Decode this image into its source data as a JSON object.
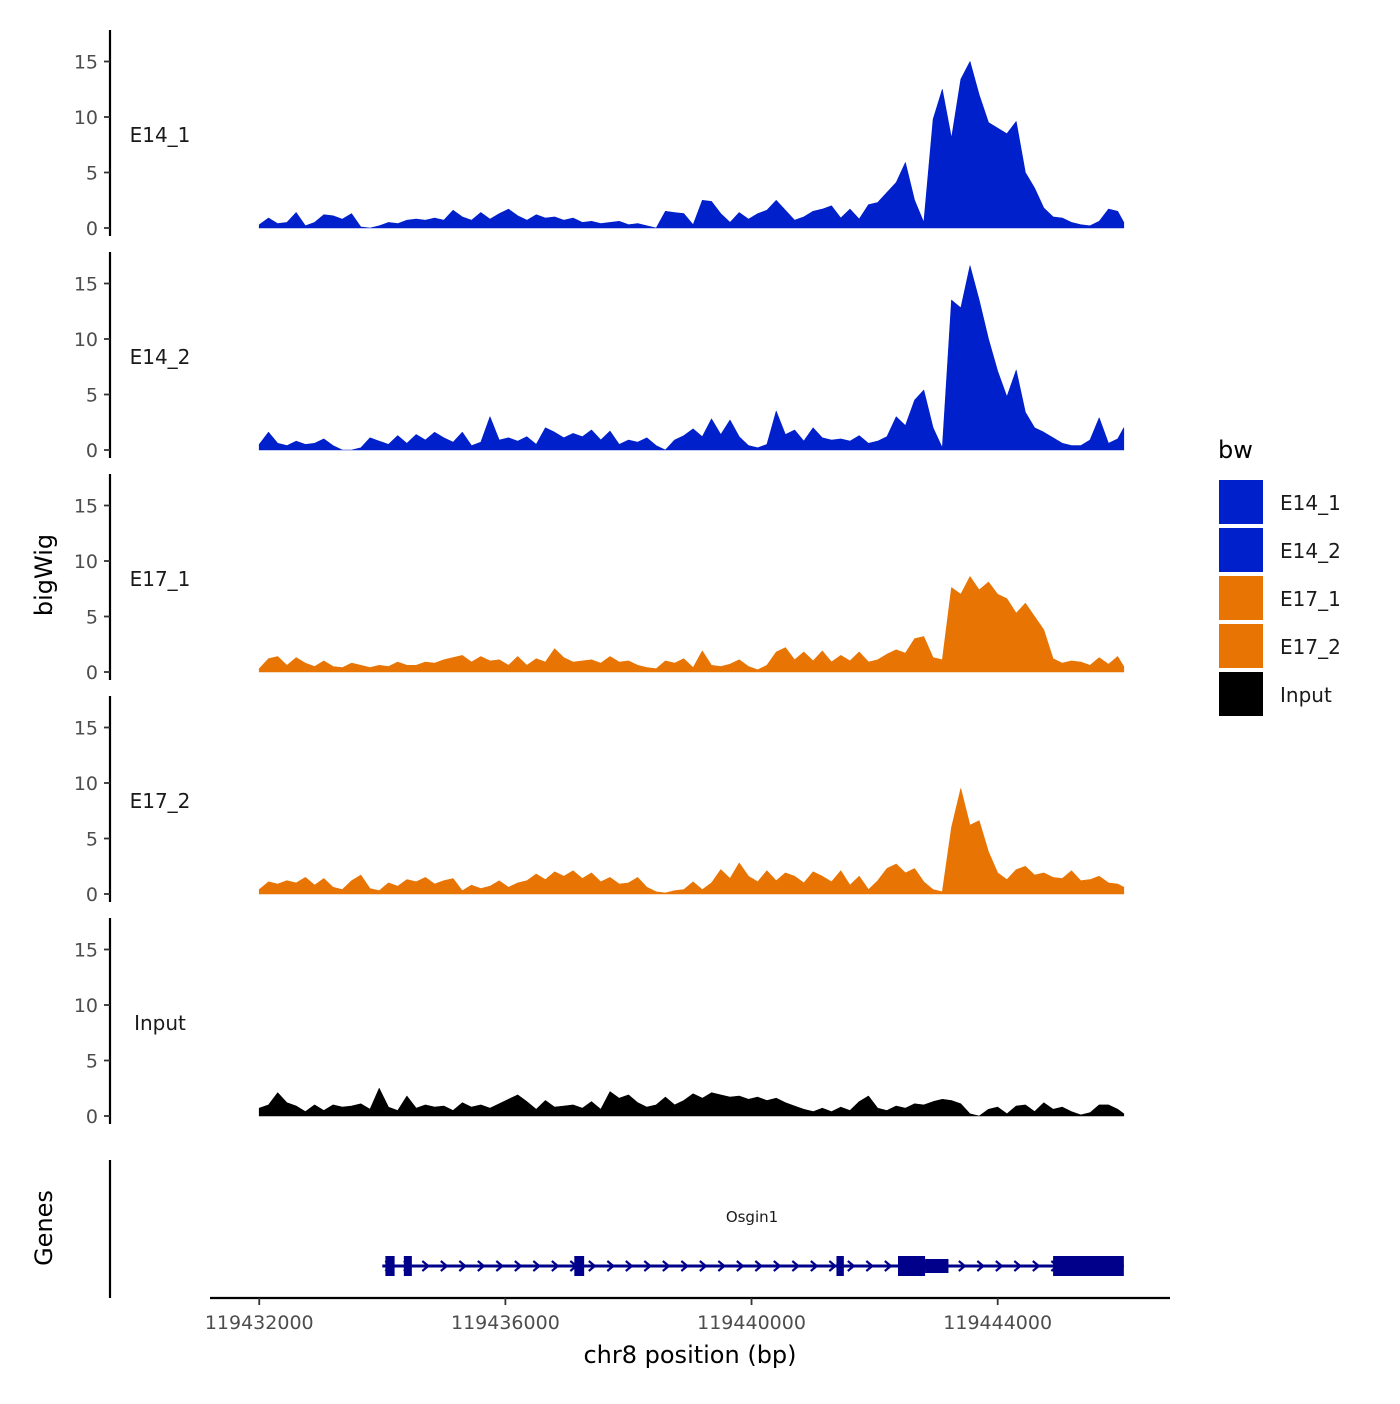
{
  "chart_data": {
    "type": "area",
    "xlabel": "chr8 position (bp)",
    "ylabel": "bigWig",
    "xlim": [
      119431200,
      119446800
    ],
    "x_ticks": [
      119432000,
      119436000,
      119440000,
      119444000
    ],
    "x_tick_labels": [
      "119432000",
      "119436000",
      "119440000",
      "119444000"
    ],
    "ylim": [
      0,
      17.5
    ],
    "y_ticks": [
      0,
      5,
      10,
      15
    ],
    "y_tick_labels": [
      "0",
      "5",
      "10",
      "15"
    ],
    "legend": {
      "title": "bw",
      "position": "right",
      "entries": [
        {
          "label": "E14_1",
          "color": "#0020CC"
        },
        {
          "label": "E14_2",
          "color": "#0020CC"
        },
        {
          "label": "E17_1",
          "color": "#E87503"
        },
        {
          "label": "E17_2",
          "color": "#E87503"
        },
        {
          "label": "Input",
          "color": "#000000"
        }
      ]
    },
    "series": [
      {
        "name": "E14_1",
        "color": "#0020CC",
        "x": [
          119432000,
          119432150,
          119432300,
          119432450,
          119432600,
          119432750,
          119432900,
          119433050,
          119433200,
          119433350,
          119433500,
          119433650,
          119433800,
          119433950,
          119434100,
          119434250,
          119434400,
          119434550,
          119434700,
          119434850,
          119435000,
          119435150,
          119435300,
          119435450,
          119435600,
          119435750,
          119435900,
          119436050,
          119436200,
          119436350,
          119436500,
          119436650,
          119436800,
          119436950,
          119437100,
          119437250,
          119437400,
          119437550,
          119437700,
          119437850,
          119438000,
          119438150,
          119438300,
          119438450,
          119438600,
          119438750,
          119438900,
          119439050,
          119439200,
          119439350,
          119439500,
          119439650,
          119439800,
          119439950,
          119440100,
          119440250,
          119440400,
          119440550,
          119440700,
          119440850,
          119441000,
          119441150,
          119441300,
          119441450,
          119441600,
          119441750,
          119441900,
          119442050,
          119442200,
          119442350,
          119442500,
          119442650,
          119442800,
          119442950,
          119443100,
          119443250,
          119443400,
          119443550,
          119443700,
          119443850,
          119444000,
          119444150,
          119444300,
          119444450,
          119444600,
          119444750,
          119444900,
          119445050,
          119445200,
          119445350,
          119445500,
          119445650,
          119445800,
          119445950,
          119446050
        ],
        "values": [
          0.3,
          0.9,
          0.4,
          0.5,
          1.4,
          0.2,
          0.5,
          1.2,
          1.1,
          0.8,
          1.3,
          0.1,
          0.0,
          0.2,
          0.5,
          0.4,
          0.7,
          0.8,
          0.7,
          0.9,
          0.7,
          1.6,
          1.0,
          0.7,
          1.4,
          0.8,
          1.3,
          1.7,
          1.1,
          0.7,
          1.2,
          0.9,
          1.0,
          0.7,
          0.9,
          0.5,
          0.6,
          0.4,
          0.5,
          0.6,
          0.3,
          0.4,
          0.2,
          0.0,
          1.5,
          1.4,
          1.3,
          0.3,
          2.5,
          2.4,
          1.3,
          0.5,
          1.4,
          0.8,
          1.3,
          1.6,
          2.5,
          1.6,
          0.7,
          1.0,
          1.5,
          1.7,
          2.0,
          0.9,
          1.7,
          0.8,
          2.1,
          2.3,
          3.2,
          4.1,
          5.9,
          2.5,
          0.5,
          9.8,
          12.5,
          8.1,
          13.4,
          15.0,
          12.0,
          9.5,
          9.0,
          8.5,
          9.6,
          5.0,
          3.6,
          1.8,
          1.0,
          0.9,
          0.5,
          0.3,
          0.2,
          0.6,
          1.7,
          1.5,
          0.5
        ]
      },
      {
        "name": "E14_2",
        "color": "#0020CC",
        "x": [
          119432000,
          119432150,
          119432300,
          119432450,
          119432600,
          119432750,
          119432900,
          119433050,
          119433200,
          119433350,
          119433500,
          119433650,
          119433800,
          119433950,
          119434100,
          119434250,
          119434400,
          119434550,
          119434700,
          119434850,
          119435000,
          119435150,
          119435300,
          119435450,
          119435600,
          119435750,
          119435900,
          119436050,
          119436200,
          119436350,
          119436500,
          119436650,
          119436800,
          119436950,
          119437100,
          119437250,
          119437400,
          119437550,
          119437700,
          119437850,
          119438000,
          119438150,
          119438300,
          119438450,
          119438600,
          119438750,
          119438900,
          119439050,
          119439200,
          119439350,
          119439500,
          119439650,
          119439800,
          119439950,
          119440100,
          119440250,
          119440400,
          119440550,
          119440700,
          119440850,
          119441000,
          119441150,
          119441300,
          119441450,
          119441600,
          119441750,
          119441900,
          119442050,
          119442200,
          119442350,
          119442500,
          119442650,
          119442800,
          119442950,
          119443100,
          119443250,
          119443400,
          119443550,
          119443700,
          119443850,
          119444000,
          119444150,
          119444300,
          119444450,
          119444600,
          119444750,
          119444900,
          119445050,
          119445200,
          119445350,
          119445500,
          119445650,
          119445800,
          119445950,
          119446050
        ],
        "values": [
          0.5,
          1.6,
          0.6,
          0.4,
          0.8,
          0.5,
          0.6,
          1.0,
          0.4,
          0.0,
          0.0,
          0.2,
          1.1,
          0.8,
          0.5,
          1.3,
          0.6,
          1.4,
          0.9,
          1.6,
          1.1,
          0.7,
          1.6,
          0.4,
          0.7,
          3.0,
          0.9,
          1.1,
          0.8,
          1.2,
          0.5,
          2.0,
          1.6,
          1.1,
          1.5,
          1.2,
          1.8,
          0.9,
          1.7,
          0.5,
          0.9,
          0.7,
          1.1,
          0.4,
          0.0,
          0.9,
          1.3,
          1.9,
          1.2,
          2.8,
          1.4,
          2.7,
          1.2,
          0.4,
          0.2,
          0.5,
          3.5,
          1.4,
          1.8,
          0.8,
          2.0,
          1.1,
          0.9,
          1.0,
          0.8,
          1.3,
          0.6,
          0.8,
          1.2,
          3.0,
          2.2,
          4.5,
          5.4,
          2.0,
          0.2,
          13.5,
          12.8,
          16.6,
          13.5,
          10.0,
          7.1,
          4.8,
          7.2,
          3.4,
          2.0,
          1.6,
          1.1,
          0.6,
          0.4,
          0.4,
          0.9,
          2.9,
          0.6,
          1.0,
          2.0
        ]
      },
      {
        "name": "E17_1",
        "color": "#E87503",
        "x": [
          119432000,
          119432150,
          119432300,
          119432450,
          119432600,
          119432750,
          119432900,
          119433050,
          119433200,
          119433350,
          119433500,
          119433650,
          119433800,
          119433950,
          119434100,
          119434250,
          119434400,
          119434550,
          119434700,
          119434850,
          119435000,
          119435150,
          119435300,
          119435450,
          119435600,
          119435750,
          119435900,
          119436050,
          119436200,
          119436350,
          119436500,
          119436650,
          119436800,
          119436950,
          119437100,
          119437250,
          119437400,
          119437550,
          119437700,
          119437850,
          119438000,
          119438150,
          119438300,
          119438450,
          119438600,
          119438750,
          119438900,
          119439050,
          119439200,
          119439350,
          119439500,
          119439650,
          119439800,
          119439950,
          119440100,
          119440250,
          119440400,
          119440550,
          119440700,
          119440850,
          119441000,
          119441150,
          119441300,
          119441450,
          119441600,
          119441750,
          119441900,
          119442050,
          119442200,
          119442350,
          119442500,
          119442650,
          119442800,
          119442950,
          119443100,
          119443250,
          119443400,
          119443550,
          119443700,
          119443850,
          119444000,
          119444150,
          119444300,
          119444450,
          119444600,
          119444750,
          119444900,
          119445050,
          119445200,
          119445350,
          119445500,
          119445650,
          119445800,
          119445950,
          119446050
        ],
        "values": [
          0.3,
          1.2,
          1.4,
          0.6,
          1.3,
          0.8,
          0.5,
          1.0,
          0.5,
          0.4,
          0.8,
          0.6,
          0.4,
          0.6,
          0.5,
          0.9,
          0.6,
          0.6,
          0.9,
          0.8,
          1.1,
          1.3,
          1.5,
          0.9,
          1.4,
          1.0,
          1.1,
          0.6,
          1.4,
          0.6,
          1.2,
          0.9,
          2.1,
          1.3,
          0.9,
          1.0,
          1.1,
          0.8,
          1.4,
          0.9,
          1.0,
          0.6,
          0.4,
          0.3,
          1.0,
          0.8,
          1.2,
          0.4,
          1.9,
          0.6,
          0.5,
          0.7,
          1.1,
          0.5,
          0.2,
          0.6,
          1.8,
          2.2,
          1.1,
          1.8,
          1.0,
          1.9,
          0.9,
          1.5,
          1.0,
          1.8,
          0.9,
          1.1,
          1.6,
          2.0,
          1.7,
          3.0,
          3.2,
          1.3,
          1.1,
          7.6,
          7.0,
          8.6,
          7.4,
          8.1,
          7.0,
          6.6,
          5.3,
          6.2,
          5.0,
          3.8,
          1.2,
          0.8,
          1.0,
          0.9,
          0.6,
          1.3,
          0.7,
          1.4,
          0.5
        ]
      },
      {
        "name": "E17_2",
        "color": "#E87503",
        "x": [
          119432000,
          119432150,
          119432300,
          119432450,
          119432600,
          119432750,
          119432900,
          119433050,
          119433200,
          119433350,
          119433500,
          119433650,
          119433800,
          119433950,
          119434100,
          119434250,
          119434400,
          119434550,
          119434700,
          119434850,
          119435000,
          119435150,
          119435300,
          119435450,
          119435600,
          119435750,
          119435900,
          119436050,
          119436200,
          119436350,
          119436500,
          119436650,
          119436800,
          119436950,
          119437100,
          119437250,
          119437400,
          119437550,
          119437700,
          119437850,
          119438000,
          119438150,
          119438300,
          119438450,
          119438600,
          119438750,
          119438900,
          119439050,
          119439200,
          119439350,
          119439500,
          119439650,
          119439800,
          119439950,
          119440100,
          119440250,
          119440400,
          119440550,
          119440700,
          119440850,
          119441000,
          119441150,
          119441300,
          119441450,
          119441600,
          119441750,
          119441900,
          119442050,
          119442200,
          119442350,
          119442500,
          119442650,
          119442800,
          119442950,
          119443100,
          119443250,
          119443400,
          119443550,
          119443700,
          119443850,
          119444000,
          119444150,
          119444300,
          119444450,
          119444600,
          119444750,
          119444900,
          119445050,
          119445200,
          119445350,
          119445500,
          119445650,
          119445800,
          119445950,
          119446050
        ],
        "values": [
          0.4,
          1.1,
          0.9,
          1.2,
          1.0,
          1.5,
          0.8,
          1.4,
          0.6,
          0.4,
          1.2,
          1.7,
          0.5,
          0.3,
          1.0,
          0.7,
          1.3,
          1.1,
          1.5,
          0.9,
          1.2,
          1.4,
          0.3,
          0.8,
          0.5,
          0.7,
          1.2,
          0.6,
          1.0,
          1.2,
          1.8,
          1.3,
          2.0,
          1.6,
          2.1,
          1.4,
          1.9,
          1.1,
          1.5,
          0.9,
          1.0,
          1.5,
          0.6,
          0.2,
          0.1,
          0.3,
          0.4,
          1.1,
          0.4,
          1.0,
          2.2,
          1.4,
          2.8,
          1.6,
          1.1,
          2.1,
          1.2,
          1.9,
          1.6,
          1.0,
          2.0,
          1.6,
          1.1,
          2.1,
          0.8,
          1.6,
          0.4,
          1.2,
          2.3,
          2.7,
          1.9,
          2.3,
          1.1,
          0.4,
          0.2,
          6.0,
          9.5,
          6.2,
          6.6,
          3.8,
          1.9,
          1.3,
          2.2,
          2.5,
          1.7,
          1.9,
          1.5,
          1.4,
          2.1,
          1.2,
          1.3,
          1.6,
          1.0,
          0.9,
          0.6
        ]
      },
      {
        "name": "Input",
        "color": "#000000",
        "x": [
          119432000,
          119432150,
          119432300,
          119432450,
          119432600,
          119432750,
          119432900,
          119433050,
          119433200,
          119433350,
          119433500,
          119433650,
          119433800,
          119433950,
          119434100,
          119434250,
          119434400,
          119434550,
          119434700,
          119434850,
          119435000,
          119435150,
          119435300,
          119435450,
          119435600,
          119435750,
          119435900,
          119436050,
          119436200,
          119436350,
          119436500,
          119436650,
          119436800,
          119436950,
          119437100,
          119437250,
          119437400,
          119437550,
          119437700,
          119437850,
          119438000,
          119438150,
          119438300,
          119438450,
          119438600,
          119438750,
          119438900,
          119439050,
          119439200,
          119439350,
          119439500,
          119439650,
          119439800,
          119439950,
          119440100,
          119440250,
          119440400,
          119440550,
          119440700,
          119440850,
          119441000,
          119441150,
          119441300,
          119441450,
          119441600,
          119441750,
          119441900,
          119442050,
          119442200,
          119442350,
          119442500,
          119442650,
          119442800,
          119442950,
          119443100,
          119443250,
          119443400,
          119443550,
          119443700,
          119443850,
          119444000,
          119444150,
          119444300,
          119444450,
          119444600,
          119444750,
          119444900,
          119445050,
          119445200,
          119445350,
          119445500,
          119445650,
          119445800,
          119445950,
          119446050
        ],
        "values": [
          0.7,
          1.0,
          2.1,
          1.2,
          0.9,
          0.4,
          1.0,
          0.5,
          1.0,
          0.8,
          0.9,
          1.1,
          0.6,
          2.5,
          0.8,
          0.5,
          1.8,
          0.7,
          1.0,
          0.8,
          0.9,
          0.5,
          1.2,
          0.8,
          1.0,
          0.7,
          1.1,
          1.5,
          1.9,
          1.3,
          0.6,
          1.4,
          0.8,
          0.9,
          1.0,
          0.7,
          1.3,
          0.6,
          2.2,
          1.6,
          1.9,
          1.2,
          0.8,
          1.0,
          1.7,
          1.0,
          1.4,
          2.0,
          1.6,
          2.1,
          1.9,
          1.7,
          1.8,
          1.5,
          1.7,
          1.4,
          1.6,
          1.2,
          0.9,
          0.6,
          0.4,
          0.7,
          0.4,
          0.8,
          0.5,
          1.3,
          1.8,
          0.7,
          0.5,
          0.9,
          0.7,
          1.1,
          1.0,
          1.3,
          1.5,
          1.4,
          1.1,
          0.2,
          0.0,
          0.6,
          0.8,
          0.2,
          0.9,
          1.0,
          0.4,
          1.2,
          0.6,
          0.8,
          0.4,
          0.1,
          0.3,
          1.0,
          1.0,
          0.6,
          0.2
        ]
      }
    ],
    "genes": {
      "title": "Genes",
      "name": "Osgin1",
      "strand": "+",
      "color": "#00008B",
      "start": 119434000,
      "end": 119446050,
      "exons": [
        [
          119434050,
          119434200
        ],
        [
          119434350,
          119434480
        ],
        [
          119437120,
          119437280
        ],
        [
          119441380,
          119441500
        ],
        [
          119442380,
          119442820
        ],
        [
          119442820,
          119443200
        ],
        [
          119444900,
          119446050
        ]
      ],
      "utr": [
        [
          119442820,
          119443200
        ]
      ]
    }
  }
}
